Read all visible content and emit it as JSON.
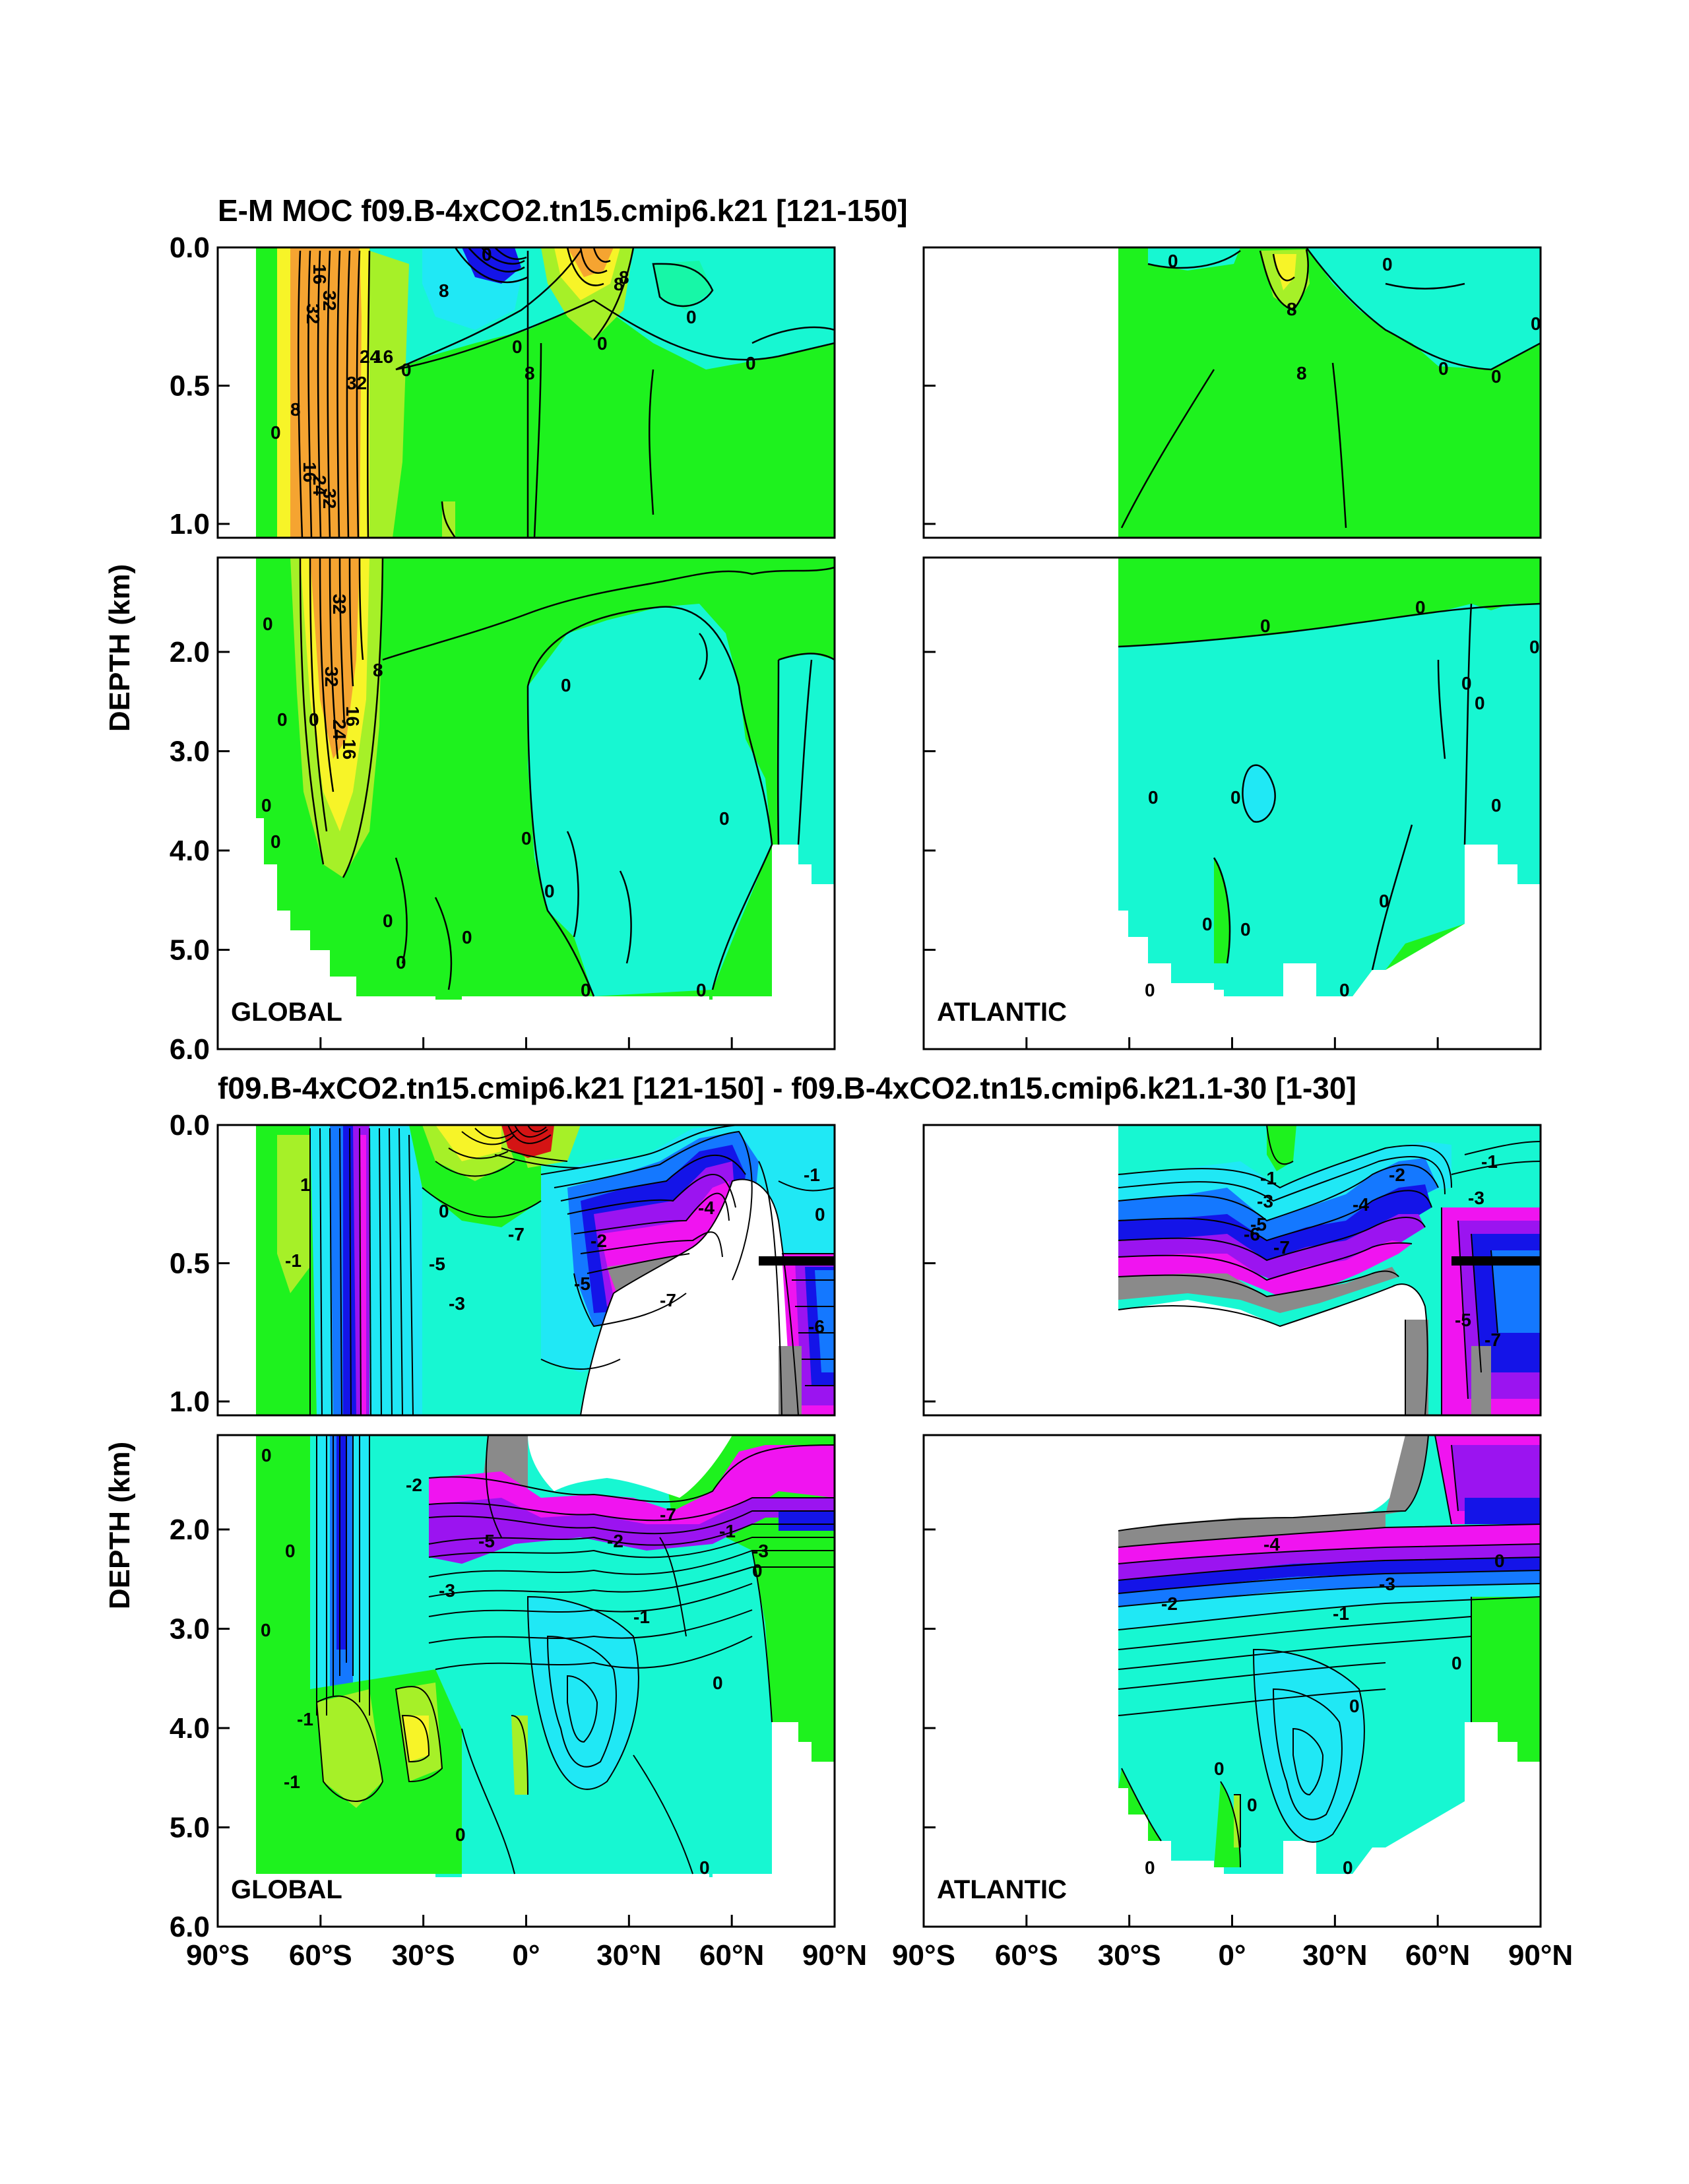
{
  "chart_data": [
    {
      "type": "contour",
      "title": "E-M MOC  f09.B-4xCO2.tn15.cmip6.k21 [121-150]",
      "ylabel": "DEPTH (km)",
      "panels": [
        {
          "region": "GLOBAL",
          "ocean_extent_lat": [
            -80,
            90
          ],
          "contour_labels": [
            "32",
            "16",
            "32",
            "8",
            "0",
            "8",
            "0",
            "16",
            "24",
            "32",
            "8",
            "0",
            "8",
            "0",
            "0",
            "8",
            "16",
            "24",
            "32",
            "0",
            "0",
            "32",
            "0",
            "16",
            "8",
            "0",
            "16",
            "24",
            "32",
            "0",
            "0",
            "0",
            "0",
            "0",
            "0",
            "0",
            "0",
            "0",
            "0",
            "0",
            "0"
          ],
          "contour_levels": [
            -40,
            -32,
            -24,
            -16,
            -8,
            0,
            8,
            16,
            24,
            32,
            40
          ]
        },
        {
          "region": "ATLANTIC",
          "ocean_extent_lat": [
            -34,
            90
          ],
          "contour_labels": [
            "0",
            "8",
            "8",
            "0",
            "0",
            "0",
            "0",
            "0",
            "0",
            "0",
            "0",
            "0",
            "0",
            "0",
            "0",
            "0",
            "0",
            "0",
            "0",
            "0"
          ],
          "contour_levels": [
            -8,
            0,
            8,
            16
          ]
        }
      ]
    },
    {
      "type": "contour",
      "title": "f09.B-4xCO2.tn15.cmip6.k21 [121-150] - f09.B-4xCO2.tn15.cmip6.k21.1-30 [1-30]",
      "ylabel": "DEPTH (km)",
      "panels": [
        {
          "region": "GLOBAL",
          "ocean_extent_lat": [
            -80,
            90
          ],
          "contour_labels": [
            "1",
            "0",
            "-1",
            "-5",
            "-3",
            "-7",
            "-5",
            "-7",
            "-2",
            "-4",
            "-6",
            "-1",
            "0",
            "-2",
            "-1",
            "-3",
            "-2",
            "-7",
            "-5",
            "-3",
            "-1",
            "0",
            "0",
            "-1",
            "-1",
            "0",
            "0",
            "0",
            "0",
            "0"
          ],
          "contour_levels": [
            -8,
            -7,
            -6,
            -5,
            -4,
            -3,
            -2,
            -1,
            0,
            1,
            2,
            3,
            4,
            5,
            6,
            7,
            8
          ]
        },
        {
          "region": "ATLANTIC",
          "ocean_extent_lat": [
            -34,
            90
          ],
          "contour_labels": [
            "-1",
            "-3",
            "-5",
            "-7",
            "-6",
            "-4",
            "-2",
            "-7",
            "-5",
            "-3",
            "-1",
            "-2",
            "-4",
            "-3",
            "-1",
            "0",
            "0",
            "0",
            "0",
            "0",
            "0",
            "0"
          ],
          "contour_levels": [
            -8,
            -7,
            -6,
            -5,
            -4,
            -3,
            -2,
            -1,
            0,
            1
          ]
        }
      ]
    }
  ],
  "axes": {
    "y_upper_ticks": [
      "0.0",
      "0.5",
      "1.0"
    ],
    "y_upper_values": [
      0.0,
      0.5,
      1.0
    ],
    "y_upper_range": [
      0,
      1.05
    ],
    "y_lower_ticks": [
      "2.0",
      "3.0",
      "4.0",
      "5.0",
      "6.0"
    ],
    "y_lower_values": [
      2.0,
      3.0,
      4.0,
      5.0,
      6.0
    ],
    "y_lower_range": [
      1.05,
      6.0
    ],
    "x_ticks": [
      "90°S",
      "60°S",
      "30°S",
      "0°",
      "30°N",
      "60°N",
      "90°N"
    ],
    "x_values": [
      -90,
      -60,
      -30,
      0,
      30,
      60,
      90
    ],
    "x_range": [
      -90,
      90
    ]
  },
  "colors": {
    "orange": "#f5a431",
    "yellow": "#f7f428",
    "lime": "#a6f028",
    "green": "#1ef21e",
    "mint": "#17f7a7",
    "aqua": "#17f7d2",
    "cyan": "#20e8f5",
    "blue": "#1478ff",
    "darkblue": "#1414e8",
    "purple": "#9b14f0",
    "magenta": "#f014f0",
    "gray": "#8a8a8a",
    "red": "#d41414",
    "black": "#000000"
  }
}
